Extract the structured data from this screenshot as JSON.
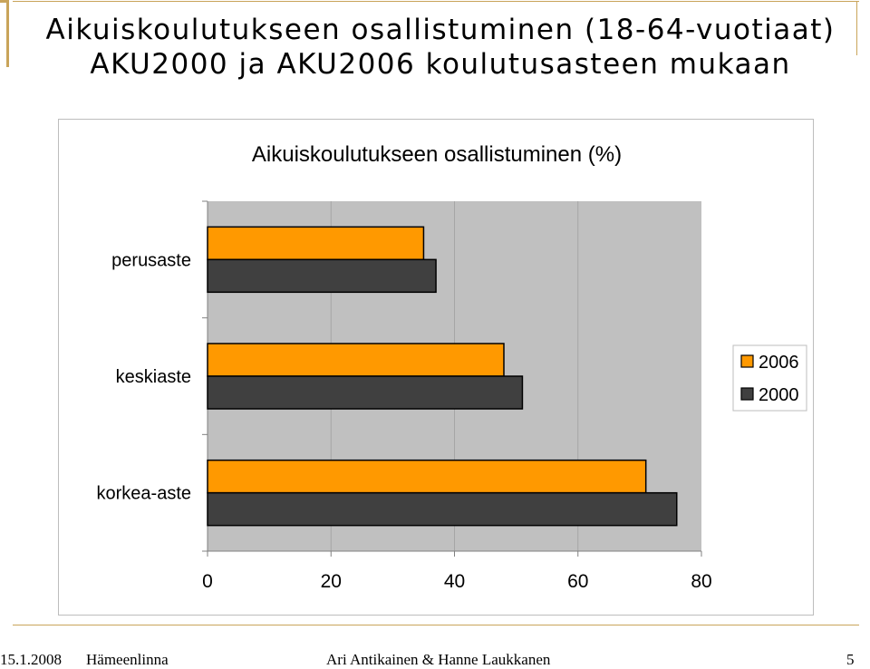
{
  "slide": {
    "title_line1": "Aikuiskoulutukseen osallistuminen (18-64-vuotiaat)",
    "title_line2": "AKU2000 ja AKU2006 koulutusasteen mukaan"
  },
  "footer": {
    "date": "15.1.2008",
    "place": "Hämeenlinna",
    "authors": "Ari Antikainen & Hanne Laukkanen",
    "page_number": "5"
  },
  "colors": {
    "series_2006": "#ff9900",
    "series_2000": "#404040",
    "plot_background": "#c0c0c0",
    "accent_rule": "#c9a45a"
  },
  "chart_data": {
    "type": "bar",
    "orientation": "horizontal",
    "title": "Aikuiskoulutukseen osallistuminen (%)",
    "xlabel": "",
    "ylabel": "",
    "categories": [
      "perusaste",
      "keskiaste",
      "korkea-aste"
    ],
    "series": [
      {
        "name": "2006",
        "values": [
          35,
          48,
          71
        ]
      },
      {
        "name": "2000",
        "values": [
          37,
          51,
          76
        ]
      }
    ],
    "xlim": [
      0,
      80
    ],
    "xticks": [
      "0",
      "20",
      "40",
      "60",
      "80"
    ],
    "grid": true,
    "legend": "right"
  }
}
